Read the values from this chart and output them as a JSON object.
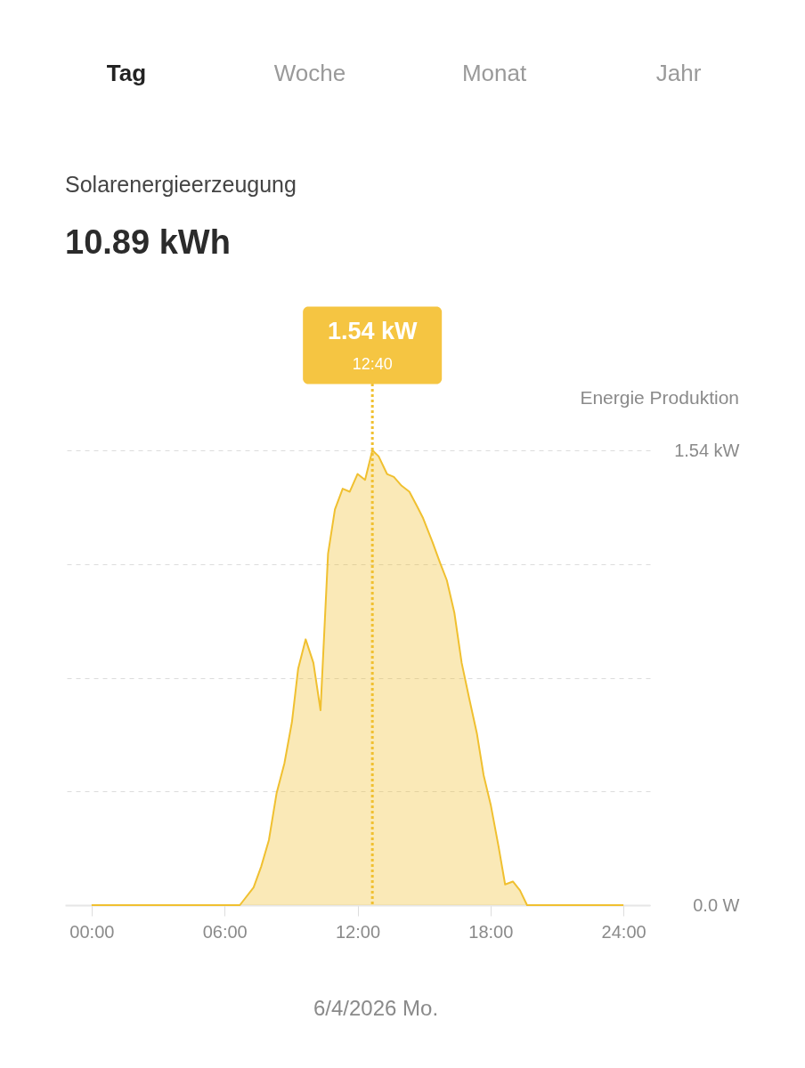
{
  "chart_data": {
    "type": "area",
    "title": "Solarenergieerzeugung",
    "subtitle": "10.89 kWh",
    "ylabel": "Energie Produktion",
    "x": [
      0,
      6.69,
      7.31,
      7.65,
      8.0,
      8.35,
      8.7,
      9.04,
      9.32,
      9.66,
      10.01,
      10.33,
      10.67,
      10.98,
      11.33,
      11.65,
      12.0,
      12.34,
      12.67,
      12.95,
      13.33,
      13.64,
      13.99,
      14.34,
      14.69,
      14.96,
      15.38,
      15.72,
      16.03,
      16.37,
      16.7,
      17.04,
      17.39,
      17.69,
      18.01,
      18.36,
      18.66,
      19.01,
      19.33,
      19.65,
      24
    ],
    "series": [
      {
        "color": "#f0c030",
        "values": [
          0,
          0,
          0.06,
          0.13,
          0.22,
          0.38,
          0.48,
          0.62,
          0.8,
          0.9,
          0.82,
          0.66,
          1.19,
          1.34,
          1.41,
          1.4,
          1.46,
          1.44,
          1.54,
          1.52,
          1.46,
          1.45,
          1.42,
          1.4,
          1.35,
          1.31,
          1.23,
          1.16,
          1.1,
          0.99,
          0.82,
          0.7,
          0.58,
          0.44,
          0.34,
          0.2,
          0.07,
          0.08,
          0.05,
          0,
          0
        ]
      }
    ],
    "xlim": [
      -1.2,
      25.2
    ],
    "xticks": [
      {
        "value": 0,
        "label": "00:00"
      },
      {
        "value": 6,
        "label": "06:00"
      },
      {
        "value": 12,
        "label": "12:00"
      },
      {
        "value": 18,
        "label": "18:00"
      },
      {
        "value": 24,
        "label": "24:00"
      }
    ],
    "ylim": [
      0,
      1.54
    ],
    "yticks": [
      {
        "value": 0,
        "label": "0.0 W"
      },
      {
        "value": 0.385,
        "label": null
      },
      {
        "value": 0.77,
        "label": null
      },
      {
        "value": 1.155,
        "label": null
      },
      {
        "value": 1.54,
        "label": "1.54 kW"
      }
    ],
    "grid": "y",
    "ref_lines": [
      {
        "axis": "x",
        "value": 12.67,
        "color": "#f0c030",
        "line_style": "dotted"
      }
    ],
    "annotations": [
      "Tag",
      "Woche",
      "Monat",
      "Jahr",
      "6/4/2026 Mo.",
      "1.54 kW",
      "12:40"
    ]
  }
}
